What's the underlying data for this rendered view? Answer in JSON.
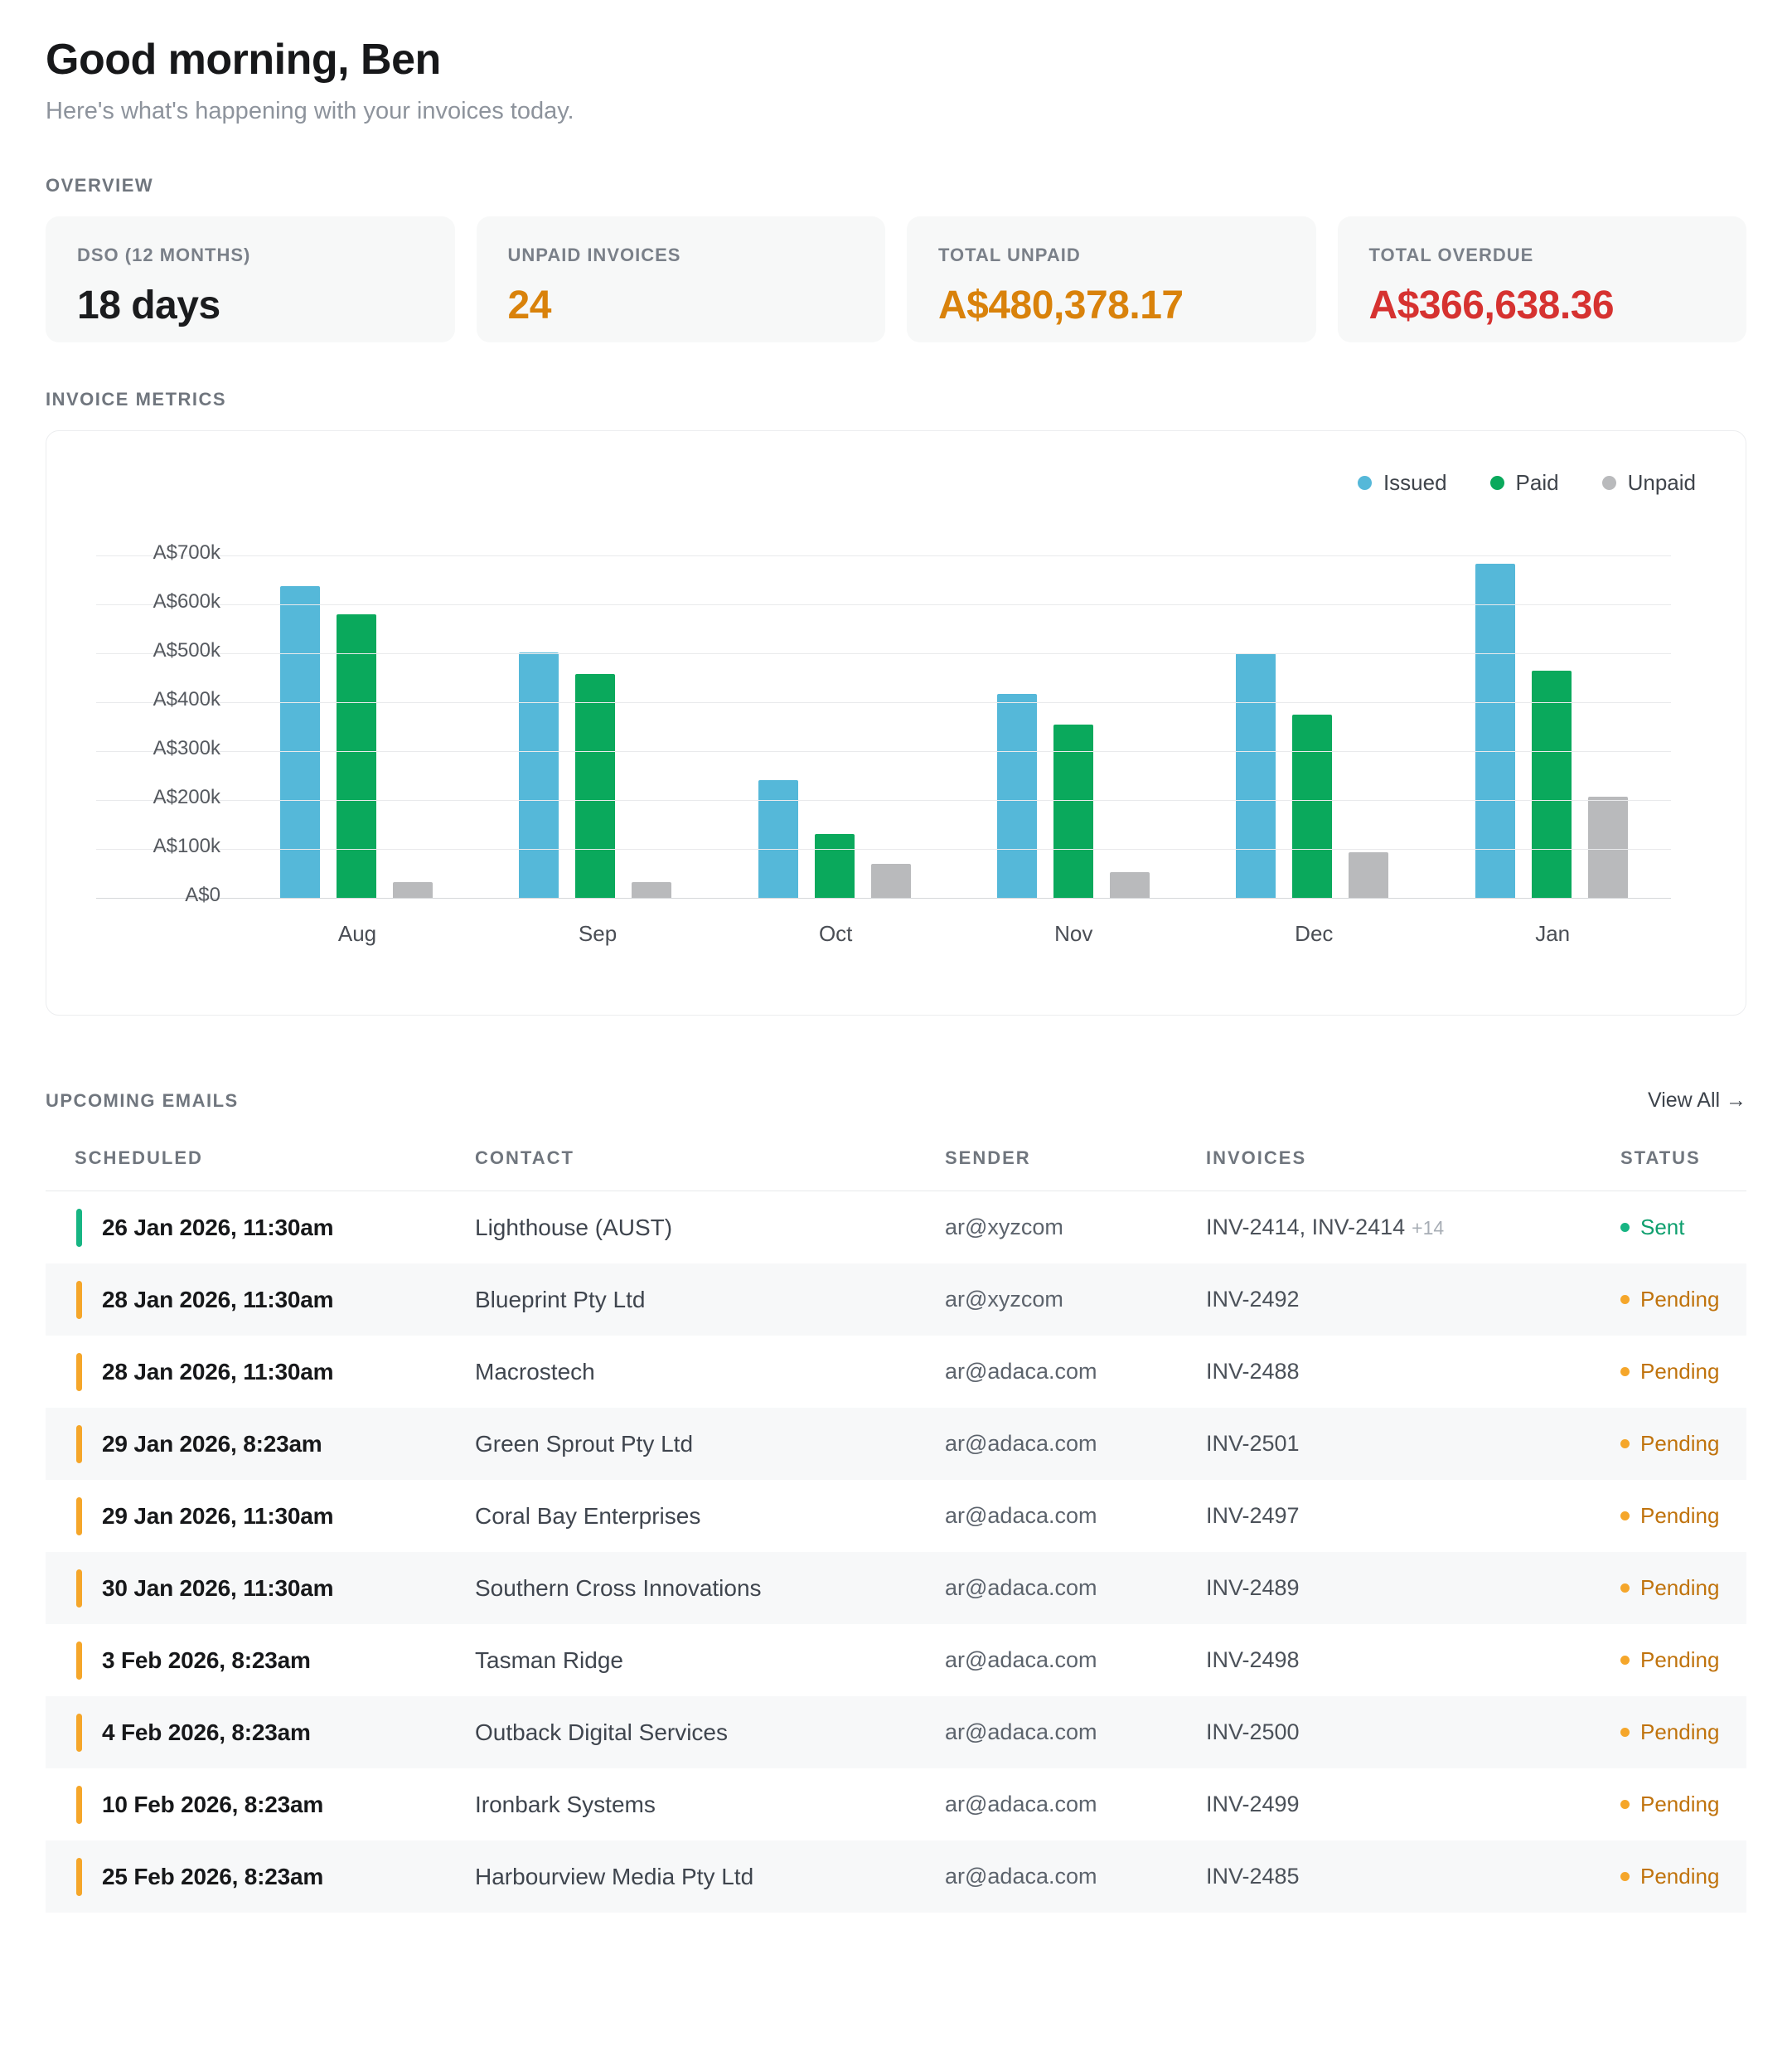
{
  "header": {
    "greeting": "Good morning, Ben",
    "subtitle": "Here's what's happening with your invoices today."
  },
  "overview": {
    "section_label": "OVERVIEW",
    "cards": [
      {
        "label": "DSO (12 MONTHS)",
        "value": "18 days",
        "value_color": "#1b1c1e"
      },
      {
        "label": "UNPAID INVOICES",
        "value": "24",
        "value_color": "#d9820b"
      },
      {
        "label": "TOTAL UNPAID",
        "value": "A$480,378.17",
        "value_color": "#d9820b"
      },
      {
        "label": "TOTAL OVERDUE",
        "value": "A$366,638.36",
        "value_color": "#d63230"
      }
    ]
  },
  "invoice_metrics": {
    "section_label": "INVOICE METRICS"
  },
  "chart_data": {
    "type": "bar",
    "title": "Invoice metrics",
    "categories": [
      "Aug",
      "Sep",
      "Oct",
      "Nov",
      "Dec",
      "Jan"
    ],
    "series": [
      {
        "name": "Issued",
        "color": "#55b8d9",
        "values": [
          638,
          502,
          240,
          417,
          500,
          683
        ]
      },
      {
        "name": "Paid",
        "color": "#0aa95c",
        "values": [
          580,
          458,
          130,
          355,
          375,
          465
        ]
      },
      {
        "name": "Unpaid",
        "color": "#b9babc",
        "values": [
          32,
          33,
          70,
          52,
          93,
          207
        ]
      }
    ],
    "unit": "A$ thousands",
    "ylim": [
      0,
      700
    ],
    "ytick_step": 100,
    "ytick_labels": [
      "A$0",
      "A$100k",
      "A$200k",
      "A$300k",
      "A$400k",
      "A$500k",
      "A$600k",
      "A$700k"
    ],
    "legend_position": "top-right",
    "grid": true,
    "xlabel": "",
    "ylabel": ""
  },
  "emails": {
    "section_label": "UPCOMING EMAILS",
    "view_all_label": "View All →",
    "columns": [
      "SCHEDULED",
      "CONTACT",
      "SENDER",
      "INVOICES",
      "STATUS"
    ],
    "rows": [
      {
        "scheduled": "26 Jan 2026, 11:30am",
        "contact": "Lighthouse (AUST)",
        "sender": "ar@xyzcom",
        "invoices": "INV-2414, INV-2414",
        "invoices_extra": "+14",
        "status": "Sent"
      },
      {
        "scheduled": "28 Jan 2026, 11:30am",
        "contact": "Blueprint Pty Ltd",
        "sender": "ar@xyzcom",
        "invoices": "INV-2492",
        "invoices_extra": "",
        "status": "Pending"
      },
      {
        "scheduled": "28 Jan 2026, 11:30am",
        "contact": "Macrostech",
        "sender": "ar@adaca.com",
        "invoices": "INV-2488",
        "invoices_extra": "",
        "status": "Pending"
      },
      {
        "scheduled": "29 Jan 2026, 8:23am",
        "contact": "Green Sprout Pty Ltd",
        "sender": "ar@adaca.com",
        "invoices": "INV-2501",
        "invoices_extra": "",
        "status": "Pending"
      },
      {
        "scheduled": "29 Jan 2026, 11:30am",
        "contact": "Coral Bay Enterprises",
        "sender": "ar@adaca.com",
        "invoices": "INV-2497",
        "invoices_extra": "",
        "status": "Pending"
      },
      {
        "scheduled": "30 Jan 2026, 11:30am",
        "contact": "Southern Cross Innovations",
        "sender": "ar@adaca.com",
        "invoices": "INV-2489",
        "invoices_extra": "",
        "status": "Pending"
      },
      {
        "scheduled": "3 Feb 2026, 8:23am",
        "contact": "Tasman Ridge",
        "sender": "ar@adaca.com",
        "invoices": "INV-2498",
        "invoices_extra": "",
        "status": "Pending"
      },
      {
        "scheduled": "4 Feb 2026, 8:23am",
        "contact": "Outback Digital Services",
        "sender": "ar@adaca.com",
        "invoices": "INV-2500",
        "invoices_extra": "",
        "status": "Pending"
      },
      {
        "scheduled": "10 Feb 2026, 8:23am",
        "contact": "Ironbark Systems",
        "sender": "ar@adaca.com",
        "invoices": "INV-2499",
        "invoices_extra": "",
        "status": "Pending"
      },
      {
        "scheduled": "25 Feb 2026, 8:23am",
        "contact": "Harbourview Media Pty Ltd",
        "sender": "ar@adaca.com",
        "invoices": "INV-2485",
        "invoices_extra": "",
        "status": "Pending"
      }
    ],
    "status_styles": {
      "Sent": {
        "text": "#0e9f6e",
        "dot": "#17b583"
      },
      "Pending": {
        "text": "#c0730d",
        "dot": "#f5a62a"
      }
    }
  }
}
